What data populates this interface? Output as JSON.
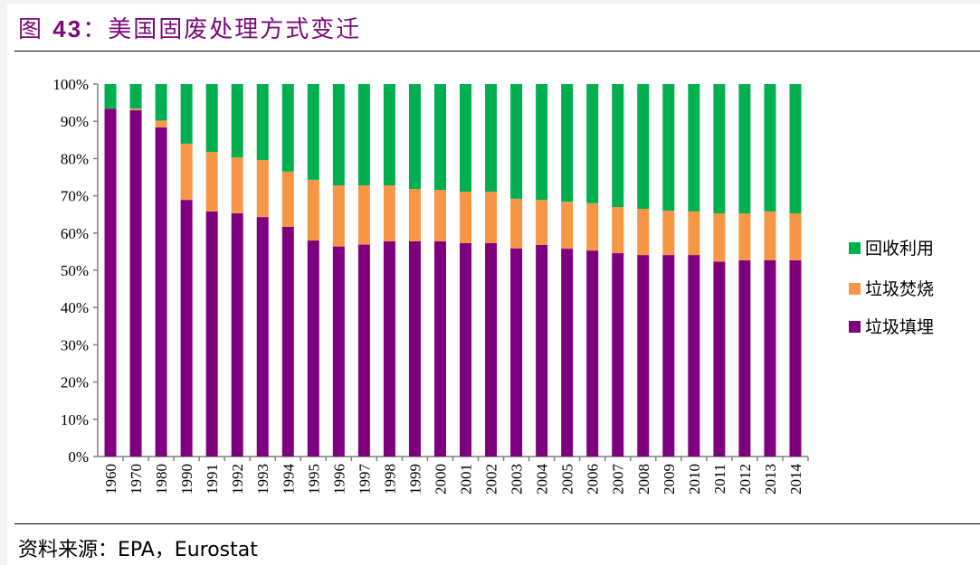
{
  "title": {
    "prefix": "图 ",
    "number": "43",
    "text": "：美国固废处理方式变迁"
  },
  "source": "资料来源：EPA，Eurostat",
  "chart_data": {
    "type": "bar",
    "stacked": true,
    "title": "",
    "xlabel": "",
    "ylabel": "",
    "ylim": [
      0,
      100
    ],
    "yticks": [
      "0%",
      "10%",
      "20%",
      "30%",
      "40%",
      "50%",
      "60%",
      "70%",
      "80%",
      "90%",
      "100%"
    ],
    "grid": false,
    "legend_position": "right",
    "categories": [
      "1960",
      "1970",
      "1980",
      "1990",
      "1991",
      "1992",
      "1993",
      "1994",
      "1995",
      "1996",
      "1997",
      "1998",
      "1999",
      "2000",
      "2001",
      "2002",
      "2003",
      "2004",
      "2005",
      "2006",
      "2007",
      "2008",
      "2009",
      "2010",
      "2011",
      "2012",
      "2013",
      "2014"
    ],
    "series": [
      {
        "name": "垃圾填埋",
        "color": "#7f007f",
        "values": [
          93.4,
          93.0,
          88.4,
          68.9,
          65.8,
          65.3,
          64.3,
          61.7,
          58.0,
          56.4,
          56.9,
          57.8,
          57.8,
          57.8,
          57.3,
          57.3,
          55.9,
          56.8,
          55.8,
          55.3,
          54.6,
          54.1,
          54.1,
          54.1,
          52.3,
          52.7,
          52.7,
          52.7
        ]
      },
      {
        "name": "垃圾焚烧",
        "color": "#f79646",
        "values": [
          0.0,
          0.4,
          1.8,
          15.1,
          16.0,
          15.0,
          15.3,
          14.8,
          16.3,
          16.4,
          15.9,
          15.0,
          14.0,
          13.8,
          13.8,
          13.8,
          13.3,
          12.1,
          12.6,
          12.7,
          12.4,
          12.4,
          11.9,
          11.7,
          13.0,
          12.6,
          13.1,
          12.6
        ]
      },
      {
        "name": "回收利用",
        "color": "#00b050",
        "values": [
          6.6,
          6.6,
          9.8,
          16.0,
          18.2,
          19.7,
          20.4,
          23.5,
          25.7,
          27.2,
          27.2,
          27.2,
          28.2,
          28.4,
          28.9,
          28.9,
          30.8,
          31.1,
          31.6,
          32.0,
          33.0,
          33.5,
          34.0,
          34.2,
          34.7,
          34.7,
          34.2,
          34.7
        ]
      }
    ],
    "legend_order": [
      "回收利用",
      "垃圾焚烧",
      "垃圾填埋"
    ]
  }
}
